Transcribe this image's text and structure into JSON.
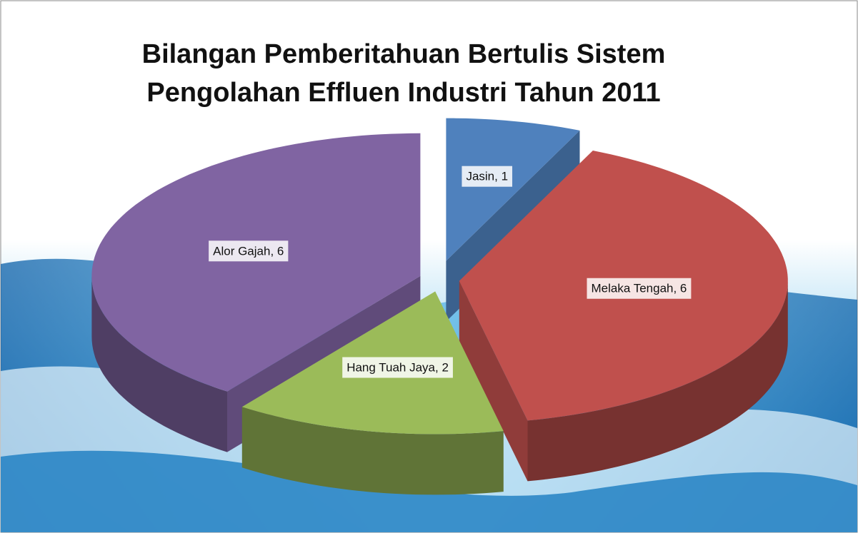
{
  "chart_data": {
    "type": "pie3d",
    "title": [
      "Bilangan  Pemberitahuan Bertulis Sistem",
      "Pengolahan Effluen Industri Tahun 2011"
    ],
    "values": [
      1,
      6,
      2,
      6
    ],
    "value_labels": [
      "Jasin, 1",
      "Melaka Tengah, 6",
      "Hang Tuah Jaya, 2",
      "Alor Gajah, 6"
    ],
    "colors": [
      "#4f81bd",
      "#c0504d",
      "#9bbb59",
      "#8064a2"
    ]
  }
}
